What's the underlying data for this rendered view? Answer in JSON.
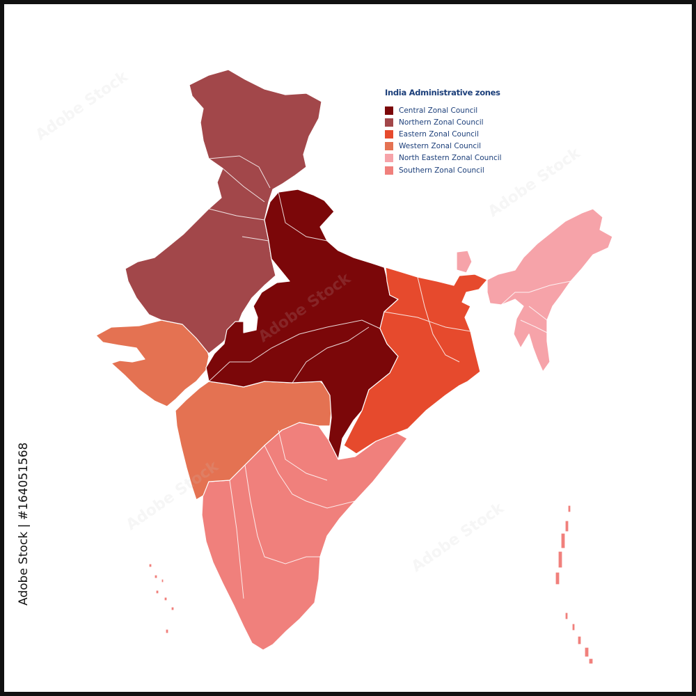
{
  "legend": {
    "title": "India Administrative zones",
    "items": [
      {
        "label": "Central Zonal Council",
        "color": "#7b0709"
      },
      {
        "label": "Northern Zonal Council",
        "color": "#a2474a"
      },
      {
        "label": "Eastern Zonal Council",
        "color": "#e64a2d"
      },
      {
        "label": "Western Zonal Council",
        "color": "#e47252"
      },
      {
        "label": "North Eastern Zonal Council",
        "color": "#f6a3a9"
      },
      {
        "label": "Southern Zonal Council",
        "color": "#f0807c"
      }
    ]
  },
  "stock_id": "Adobe Stock | #164051568",
  "watermark_text": "Adobe Stock"
}
